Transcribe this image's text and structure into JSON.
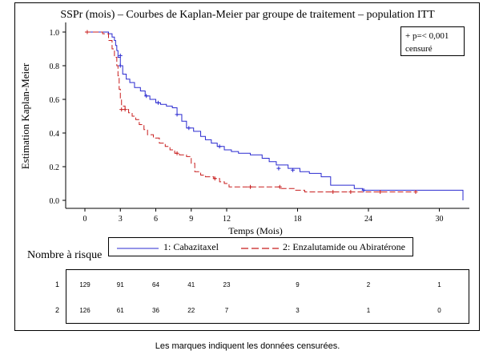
{
  "chart_data": {
    "type": "line",
    "title": "SSPr (mois) – Courbes de Kaplan-Meier par groupe de traitement – population ITT",
    "xlabel": "Temps (Mois)",
    "ylabel": "Estimation Kaplan-Meier",
    "xlim": [
      0,
      32
    ],
    "ylim": [
      0,
      1
    ],
    "x_ticks": [
      0,
      3,
      6,
      9,
      12,
      18,
      24,
      30
    ],
    "y_ticks": [
      0.0,
      0.2,
      0.4,
      0.6,
      0.8,
      1.0
    ],
    "x_tick_labels": [
      "0",
      "3",
      "6",
      "9",
      "12",
      "18",
      "24",
      "30"
    ],
    "y_tick_labels": [
      "0.0",
      "0.2",
      "0.4",
      "0.6",
      "0.8",
      "1.0"
    ],
    "grid": false,
    "annotation_lines": [
      "+ p=< 0,001",
      "censuré"
    ],
    "series": [
      {
        "name": "1: Cabazitaxel",
        "color": "#2a2ad0",
        "style": "solid",
        "steps": [
          [
            0,
            1.0
          ],
          [
            2.0,
            0.99
          ],
          [
            2.3,
            0.97
          ],
          [
            2.5,
            0.95
          ],
          [
            2.6,
            0.92
          ],
          [
            2.7,
            0.89
          ],
          [
            2.8,
            0.85
          ],
          [
            3.0,
            0.8
          ],
          [
            3.2,
            0.75
          ],
          [
            3.5,
            0.72
          ],
          [
            3.8,
            0.7
          ],
          [
            4.2,
            0.67
          ],
          [
            4.7,
            0.65
          ],
          [
            5.1,
            0.62
          ],
          [
            5.5,
            0.6
          ],
          [
            6.0,
            0.58
          ],
          [
            6.4,
            0.57
          ],
          [
            6.9,
            0.56
          ],
          [
            7.4,
            0.55
          ],
          [
            7.8,
            0.51
          ],
          [
            8.2,
            0.47
          ],
          [
            8.6,
            0.43
          ],
          [
            9.2,
            0.41
          ],
          [
            9.8,
            0.38
          ],
          [
            10.2,
            0.36
          ],
          [
            10.7,
            0.34
          ],
          [
            11.2,
            0.32
          ],
          [
            11.8,
            0.3
          ],
          [
            12.4,
            0.29
          ],
          [
            13.0,
            0.28
          ],
          [
            14.0,
            0.27
          ],
          [
            15.0,
            0.25
          ],
          [
            15.6,
            0.23
          ],
          [
            16.2,
            0.21
          ],
          [
            17.2,
            0.19
          ],
          [
            18.2,
            0.17
          ],
          [
            19.0,
            0.16
          ],
          [
            20.0,
            0.14
          ],
          [
            20.8,
            0.09
          ],
          [
            22.8,
            0.07
          ],
          [
            23.5,
            0.06
          ],
          [
            32.0,
            0.06
          ],
          [
            32.0,
            0.0
          ]
        ],
        "censored": [
          [
            3.0,
            0.8
          ],
          [
            3.0,
            0.86
          ],
          [
            5.2,
            0.62
          ],
          [
            6.2,
            0.58
          ],
          [
            7.8,
            0.51
          ],
          [
            8.8,
            0.43
          ],
          [
            11.4,
            0.32
          ],
          [
            16.4,
            0.19
          ],
          [
            17.6,
            0.18
          ],
          [
            23.6,
            0.06
          ]
        ]
      },
      {
        "name": "2: Enzalutamide ou Abiratérone",
        "color": "#c81e1e",
        "style": "dashed",
        "steps": [
          [
            0,
            1.0
          ],
          [
            1.5,
            0.99
          ],
          [
            2.0,
            0.95
          ],
          [
            2.3,
            0.9
          ],
          [
            2.5,
            0.85
          ],
          [
            2.7,
            0.8
          ],
          [
            2.8,
            0.74
          ],
          [
            2.9,
            0.66
          ],
          [
            3.0,
            0.6
          ],
          [
            3.1,
            0.56
          ],
          [
            3.4,
            0.54
          ],
          [
            3.7,
            0.52
          ],
          [
            4.0,
            0.5
          ],
          [
            4.3,
            0.48
          ],
          [
            4.6,
            0.45
          ],
          [
            5.0,
            0.42
          ],
          [
            5.3,
            0.39
          ],
          [
            5.8,
            0.37
          ],
          [
            6.3,
            0.34
          ],
          [
            6.8,
            0.32
          ],
          [
            7.2,
            0.3
          ],
          [
            7.6,
            0.28
          ],
          [
            8.0,
            0.27
          ],
          [
            8.6,
            0.26
          ],
          [
            9.0,
            0.22
          ],
          [
            9.3,
            0.17
          ],
          [
            9.8,
            0.15
          ],
          [
            10.2,
            0.14
          ],
          [
            10.9,
            0.13
          ],
          [
            11.4,
            0.11
          ],
          [
            11.8,
            0.1
          ],
          [
            12.2,
            0.08
          ],
          [
            16.6,
            0.07
          ],
          [
            17.8,
            0.06
          ],
          [
            18.6,
            0.05
          ],
          [
            28.0,
            0.05
          ]
        ],
        "censored": [
          [
            0.2,
            1.0
          ],
          [
            3.1,
            0.54
          ],
          [
            3.4,
            0.54
          ],
          [
            7.8,
            0.28
          ],
          [
            11.0,
            0.13
          ],
          [
            14.0,
            0.08
          ],
          [
            16.5,
            0.08
          ],
          [
            21.0,
            0.05
          ],
          [
            22.5,
            0.05
          ],
          [
            25.0,
            0.05
          ],
          [
            28.0,
            0.05
          ]
        ]
      }
    ],
    "risk_table": {
      "label": "Nombre à risque",
      "times": [
        0,
        3,
        6,
        9,
        12,
        18,
        24,
        30
      ],
      "rows": [
        {
          "id": "1",
          "values": [
            "129",
            "91",
            "64",
            "41",
            "23",
            "9",
            "2",
            "1"
          ]
        },
        {
          "id": "2",
          "values": [
            "126",
            "61",
            "36",
            "22",
            "7",
            "3",
            "1",
            "0"
          ]
        }
      ]
    }
  },
  "caption": "Les marques indiquent les données censurées."
}
